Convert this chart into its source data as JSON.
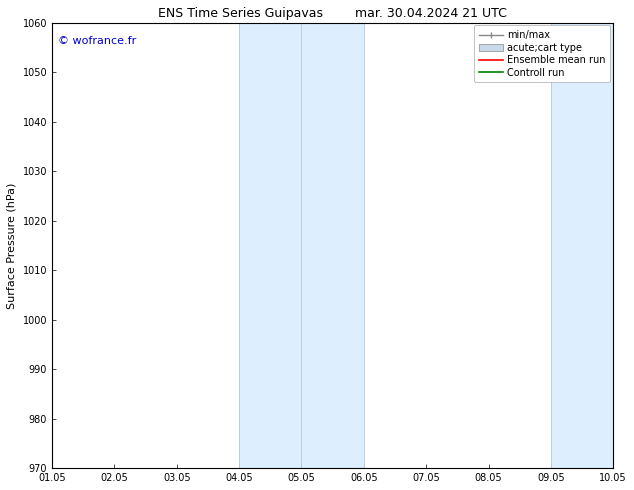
{
  "title_left": "ENS Time Series Guipavas",
  "title_right": "mar. 30.04.2024 21 UTC",
  "ylabel": "Surface Pressure (hPa)",
  "ylim": [
    970,
    1060
  ],
  "yticks": [
    970,
    980,
    990,
    1000,
    1010,
    1020,
    1030,
    1040,
    1050,
    1060
  ],
  "xtick_labels": [
    "01.05",
    "02.05",
    "03.05",
    "04.05",
    "05.05",
    "06.05",
    "07.05",
    "08.05",
    "09.05",
    "10.05"
  ],
  "shaded_regions": [
    {
      "start": 3.0,
      "end": 5.0,
      "color": "#ddeeff"
    },
    {
      "start": 8.0,
      "end": 10.0,
      "color": "#ddeeff"
    }
  ],
  "shaded_borders": [
    3.0,
    4.0,
    5.0,
    8.0,
    9.0,
    10.0
  ],
  "border_color": "#bbccdd",
  "watermark_text": "© wofrance.fr",
  "watermark_color": "#0000cc",
  "legend_entries": [
    {
      "label": "min/max"
    },
    {
      "label": "acute;cart type"
    },
    {
      "label": "Ensemble mean run"
    },
    {
      "label": "Controll run"
    }
  ],
  "legend_colors": [
    "#888888",
    "#c8daea",
    "#ff0000",
    "#008000"
  ],
  "background_color": "#ffffff",
  "tick_fontsize": 7,
  "ylabel_fontsize": 8,
  "title_fontsize": 9,
  "legend_fontsize": 7,
  "watermark_fontsize": 8
}
